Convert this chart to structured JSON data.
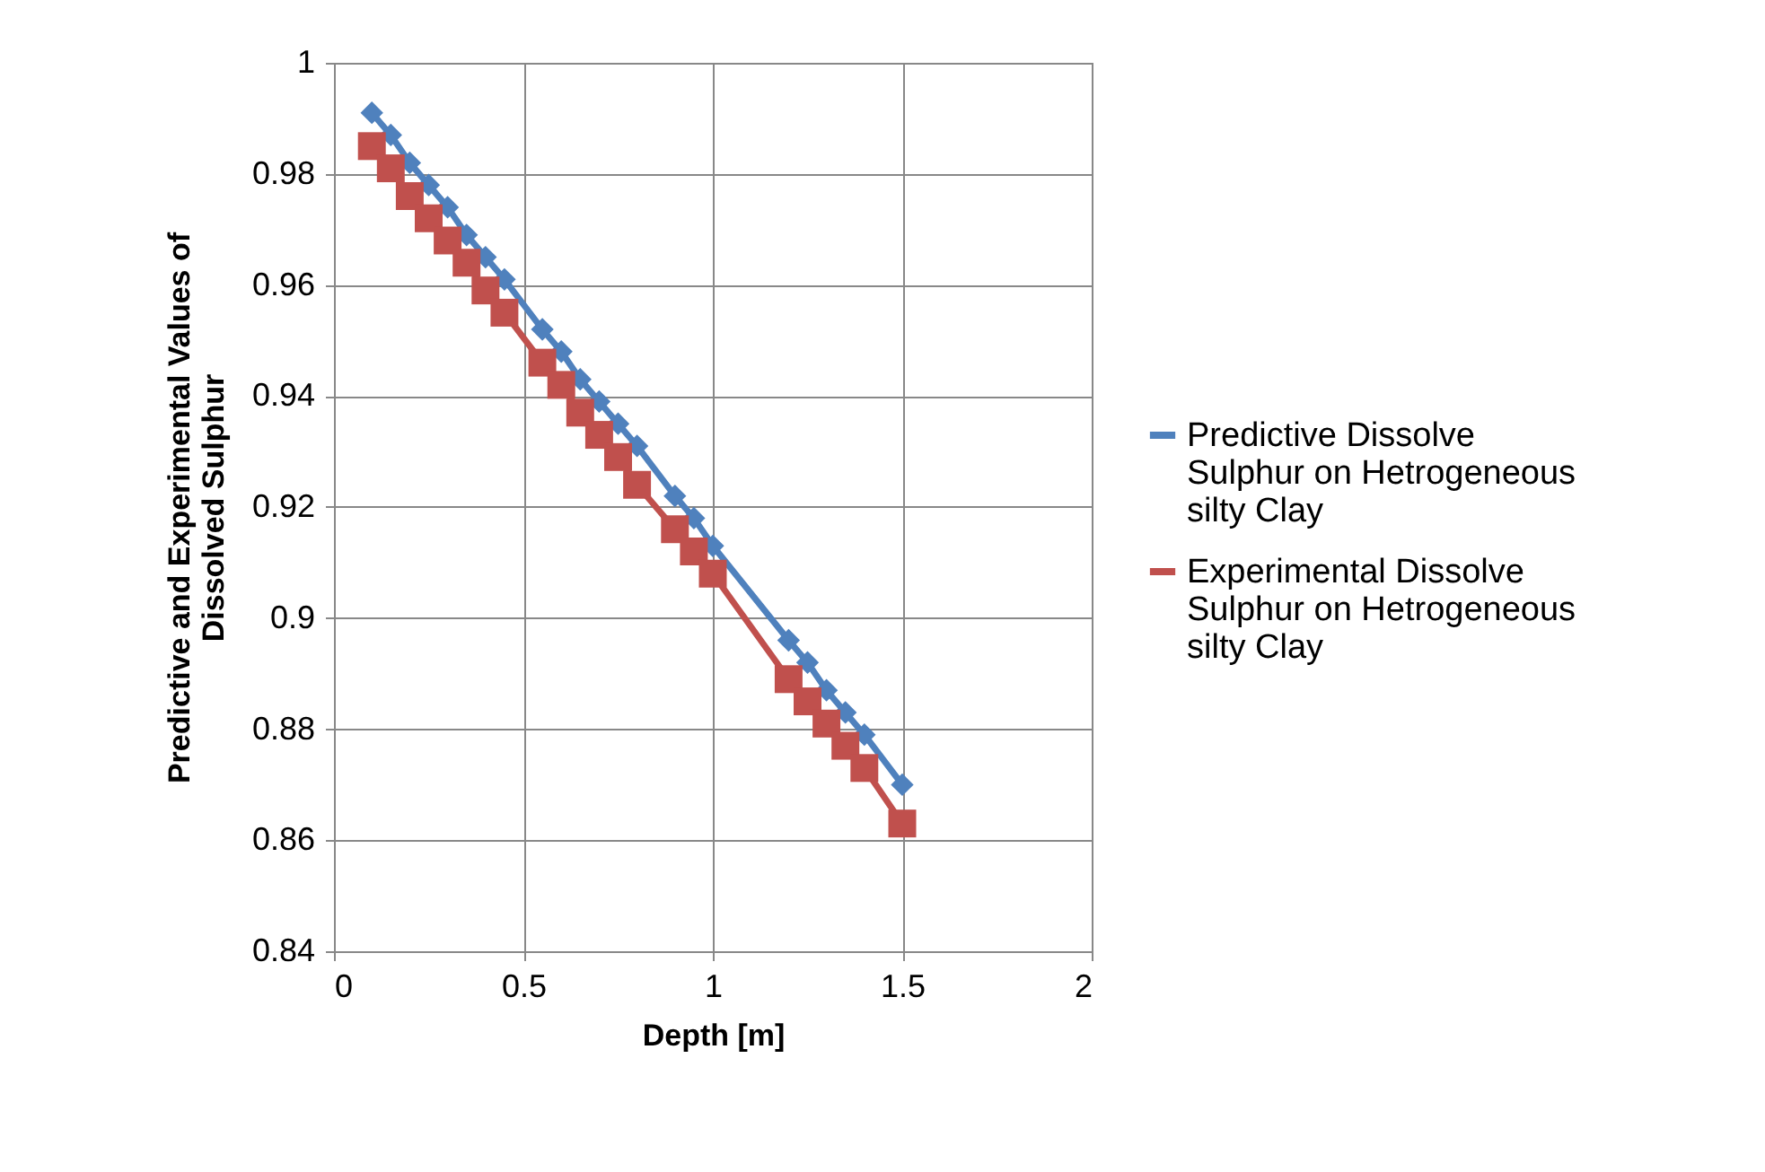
{
  "chart_data": {
    "type": "line",
    "xlabel": "Depth [m]",
    "ylabel": "Predictive and Experimental Values of Dissolved Sulphur",
    "x": [
      0.1,
      0.15,
      0.2,
      0.25,
      0.3,
      0.35,
      0.4,
      0.45,
      0.55,
      0.6,
      0.65,
      0.7,
      0.75,
      0.8,
      0.9,
      0.95,
      1.0,
      1.2,
      1.25,
      1.3,
      1.35,
      1.4,
      1.5
    ],
    "series": [
      {
        "name": "Predictive Dissolve Sulphur on Hetrogeneous silty Clay",
        "color": "#4f81bd",
        "marker": "diamond",
        "values": [
          0.991,
          0.987,
          0.982,
          0.978,
          0.974,
          0.969,
          0.965,
          0.961,
          0.952,
          0.948,
          0.943,
          0.939,
          0.935,
          0.931,
          0.922,
          0.918,
          0.913,
          0.896,
          0.892,
          0.887,
          0.883,
          0.879,
          0.87
        ]
      },
      {
        "name": "Experimental  Dissolve Sulphur on Hetrogeneous silty Clay",
        "color": "#c0504d",
        "marker": "square",
        "values": [
          0.985,
          0.981,
          0.976,
          0.972,
          0.968,
          0.964,
          0.959,
          0.955,
          0.946,
          0.942,
          0.937,
          0.933,
          0.929,
          0.924,
          0.916,
          0.912,
          0.908,
          0.889,
          0.885,
          0.881,
          0.877,
          0.873,
          0.863
        ]
      }
    ],
    "xlim": [
      0,
      2
    ],
    "xticks": [
      0,
      0.5,
      1,
      1.5,
      2
    ],
    "ylim": [
      0.84,
      1
    ],
    "yticks": [
      0.84,
      0.86,
      0.88,
      0.9,
      0.92,
      0.94,
      0.96,
      0.98,
      1
    ],
    "grid": true,
    "legend": "right",
    "line_style": "solid"
  }
}
